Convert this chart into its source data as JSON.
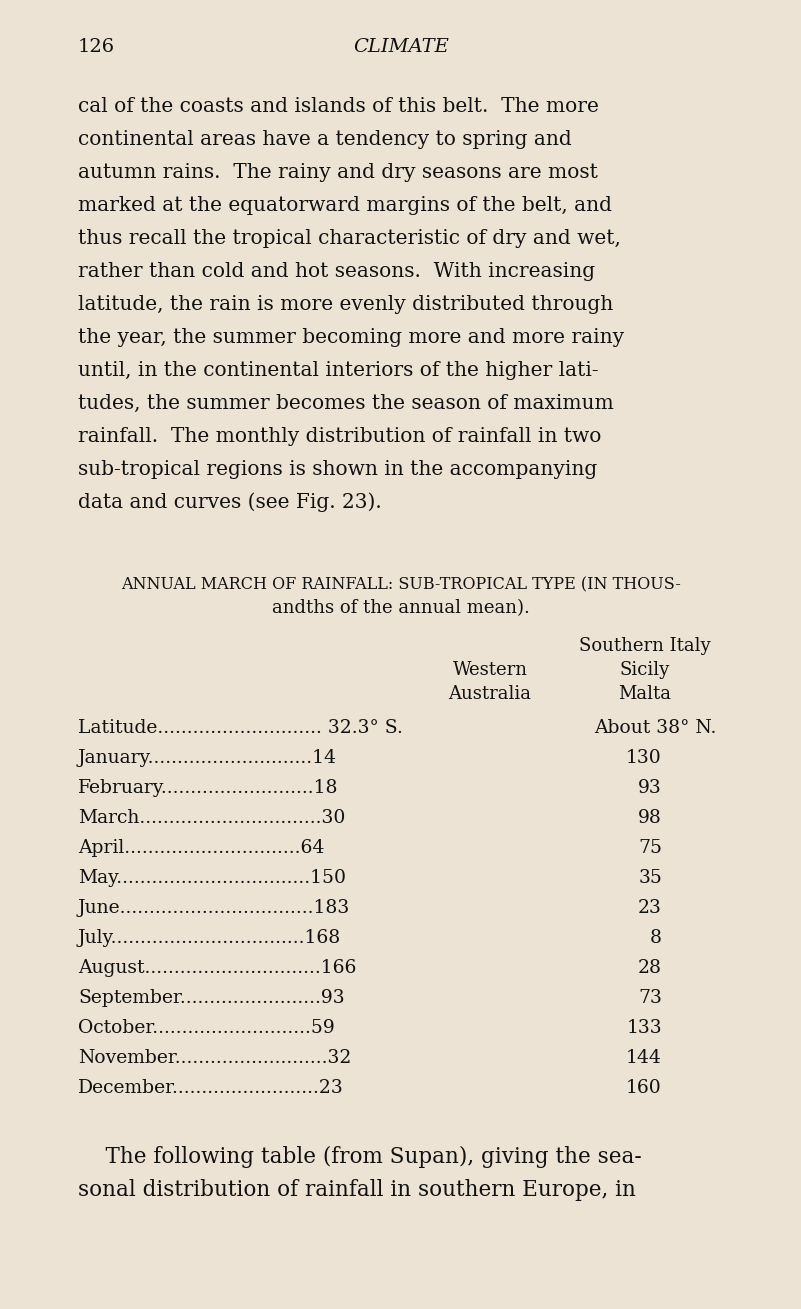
{
  "page_number": "126",
  "chapter_title": "CLIMATE",
  "background_color": "#ede3d5",
  "text_color": "#111111",
  "body_lines": [
    "cal of the coasts and islands of this belt.  The more",
    "continental areas have a tendency to spring and",
    "autumn rains.  The rainy and dry seasons are most",
    "marked at the equatorward margins of the belt, and",
    "thus recall the tropical characteristic of dry and wet,",
    "rather than cold and hot seasons.  With increasing",
    "latitude, the rain is more evenly distributed through",
    "the year, the summer becoming more and more rainy",
    "until, in the continental interiors of the higher lati-",
    "tudes, the summer becomes the season of maximum",
    "rainfall.  The monthly distribution of rainfall in two",
    "sub-tropical regions is shown in the accompanying",
    "data and curves (see Fig. 23)."
  ],
  "table_heading_line1": "annual march of rainfall: sub-tropical type (in thous-",
  "table_heading_line2": "andths of the annual mean).",
  "col_header_right_line1": "Southern Italy",
  "col_header_middle": "Western",
  "col_header_middle2": "Australia",
  "col_header_right2": "Sicily",
  "col_header_right3": "Malta",
  "latitude_label": "Latitude",
  "latitude_val_mid": "32.3° S.",
  "latitude_val_right": "About 38° N.",
  "months": [
    "January",
    "February",
    "March",
    "April",
    "May",
    "June",
    "July",
    "August",
    "September",
    "October",
    "November",
    "December"
  ],
  "western_australia": [
    14,
    18,
    30,
    64,
    150,
    183,
    168,
    166,
    93,
    59,
    32,
    23
  ],
  "southern_italy": [
    130,
    93,
    98,
    75,
    35,
    23,
    8,
    28,
    73,
    133,
    144,
    160
  ],
  "footer_lines": [
    "    The following table (from Supan), giving the sea-",
    "sonal distribution of rainfall in southern Europe, in"
  ]
}
